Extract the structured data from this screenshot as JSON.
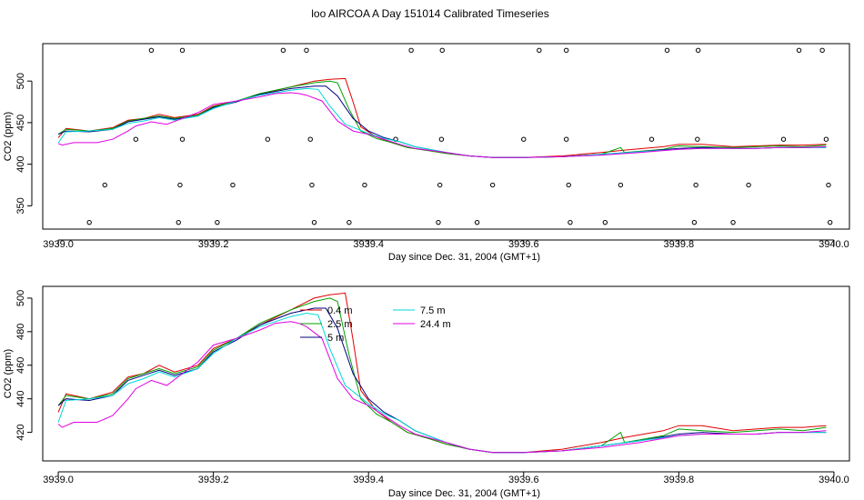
{
  "title": "loo AIRCOA A  Day 151014  Calibrated Timeseries",
  "colors": {
    "0.4 m": "#e00000",
    "2.5 m": "#00a000",
    "5 m": "#000080",
    "7.5 m": "#00d8d8",
    "24.4 m": "#e000e0",
    "axis": "#000000"
  },
  "chart_data": [
    {
      "type": "line",
      "title": "",
      "xlabel": "Day since Dec. 31, 2004 (GMT+1)",
      "ylabel": "CO2 (ppm)",
      "xlim": [
        3938.98,
        3940.02
      ],
      "ylim": [
        322,
        545
      ],
      "xticks": [
        "3939.0",
        "3939.2",
        "3939.4",
        "3939.6",
        "3939.8",
        "3940.0"
      ],
      "xtick_values": [
        3939.0,
        3939.2,
        3939.4,
        3939.6,
        3939.8,
        3940.0
      ],
      "yticks": [
        "350",
        "400",
        "450",
        "500"
      ],
      "ytick_values": [
        350,
        400,
        450,
        500
      ],
      "legend": null,
      "series": [
        {
          "key": "0.4 m",
          "x": [
            3939.0,
            3939.01,
            3939.04,
            3939.07,
            3939.09,
            3939.11,
            3939.13,
            3939.15,
            3939.18,
            3939.2,
            3939.23,
            3939.26,
            3939.3,
            3939.33,
            3939.35,
            3939.37,
            3939.38,
            3939.39,
            3939.41,
            3939.43,
            3939.45,
            3939.48,
            3939.5,
            3939.53,
            3939.56,
            3939.6,
            3939.65,
            3939.7,
            3939.73,
            3939.78,
            3939.8,
            3939.83,
            3939.87,
            3939.9,
            3939.93,
            3939.96,
            3939.99
          ],
          "y": [
            432,
            443,
            440,
            444,
            453,
            455,
            460,
            456,
            460,
            470,
            476,
            484,
            493,
            500,
            502,
            503,
            475,
            445,
            433,
            426,
            420,
            416,
            413,
            410,
            408,
            408,
            410,
            414,
            417,
            421,
            424,
            424,
            421,
            422,
            423,
            423,
            424
          ]
        },
        {
          "key": "2.5 m",
          "x": [
            3939.0,
            3939.01,
            3939.04,
            3939.07,
            3939.09,
            3939.11,
            3939.13,
            3939.15,
            3939.18,
            3939.2,
            3939.23,
            3939.26,
            3939.3,
            3939.33,
            3939.35,
            3939.36,
            3939.375,
            3939.39,
            3939.41,
            3939.43,
            3939.45,
            3939.48,
            3939.5,
            3939.53,
            3939.56,
            3939.6,
            3939.65,
            3939.7,
            3939.725,
            3939.73,
            3939.78,
            3939.8,
            3939.83,
            3939.87,
            3939.9,
            3939.93,
            3939.96,
            3939.99
          ],
          "y": [
            436,
            442,
            440,
            443,
            452,
            455,
            458,
            455,
            459,
            469,
            476,
            485,
            493,
            498,
            500,
            498,
            466,
            440,
            431,
            426,
            420,
            416,
            413,
            410,
            408,
            408,
            409,
            412,
            420,
            414,
            418,
            422,
            421,
            420,
            421,
            422,
            421,
            423
          ]
        },
        {
          "key": "5 m",
          "x": [
            3939.0,
            3939.01,
            3939.04,
            3939.07,
            3939.09,
            3939.11,
            3939.13,
            3939.15,
            3939.18,
            3939.2,
            3939.23,
            3939.26,
            3939.3,
            3939.33,
            3939.345,
            3939.36,
            3939.38,
            3939.4,
            3939.42,
            3939.44,
            3939.46,
            3939.5,
            3939.53,
            3939.56,
            3939.6,
            3939.65,
            3939.7,
            3939.75,
            3939.8,
            3939.83,
            3939.87,
            3939.9,
            3939.93,
            3939.96,
            3939.99
          ],
          "y": [
            436,
            440,
            439,
            442,
            451,
            454,
            457,
            454,
            458,
            468,
            475,
            484,
            491,
            494,
            494,
            482,
            455,
            440,
            432,
            427,
            421,
            414,
            410,
            408,
            408,
            409,
            412,
            415,
            419,
            420,
            419,
            419,
            420,
            420,
            420
          ]
        },
        {
          "key": "7.5 m",
          "x": [
            3939.0,
            3939.01,
            3939.04,
            3939.07,
            3939.09,
            3939.11,
            3939.13,
            3939.15,
            3939.18,
            3939.2,
            3939.23,
            3939.26,
            3939.3,
            3939.32,
            3939.335,
            3939.35,
            3939.37,
            3939.4,
            3939.42,
            3939.44,
            3939.46,
            3939.5,
            3939.53,
            3939.56,
            3939.6,
            3939.65,
            3939.7,
            3939.75,
            3939.8,
            3939.83,
            3939.87,
            3939.9,
            3939.93,
            3939.96,
            3939.99
          ],
          "y": [
            426,
            439,
            440,
            442,
            449,
            452,
            456,
            453,
            458,
            467,
            476,
            483,
            489,
            491,
            490,
            470,
            448,
            437,
            431,
            427,
            421,
            414,
            410,
            408,
            408,
            409,
            412,
            415,
            418,
            419,
            419,
            419,
            420,
            420,
            420
          ]
        },
        {
          "key": "24.4 m",
          "x": [
            3939.0,
            3939.005,
            3939.02,
            3939.05,
            3939.07,
            3939.09,
            3939.1,
            3939.12,
            3939.14,
            3939.16,
            3939.18,
            3939.2,
            3939.23,
            3939.26,
            3939.28,
            3939.3,
            3939.31,
            3939.32,
            3939.34,
            3939.36,
            3939.38,
            3939.4,
            3939.42,
            3939.44,
            3939.46,
            3939.5,
            3939.53,
            3939.56,
            3939.6,
            3939.65,
            3939.7,
            3939.75,
            3939.8,
            3939.83,
            3939.87,
            3939.9,
            3939.93,
            3939.96,
            3939.99
          ],
          "y": [
            425,
            423,
            426,
            426,
            430,
            440,
            446,
            451,
            448,
            455,
            462,
            472,
            476,
            481,
            485,
            486,
            485,
            483,
            476,
            452,
            440,
            436,
            430,
            424,
            419,
            414,
            410,
            408,
            408,
            409,
            411,
            414,
            418,
            419,
            419,
            419,
            420,
            420,
            421
          ]
        }
      ],
      "points": [
        {
          "x": 3939.04,
          "y": 330
        },
        {
          "x": 3939.06,
          "y": 375
        },
        {
          "x": 3939.1,
          "y": 430
        },
        {
          "x": 3939.12,
          "y": 537
        },
        {
          "x": 3939.155,
          "y": 330
        },
        {
          "x": 3939.157,
          "y": 375
        },
        {
          "x": 3939.16,
          "y": 430
        },
        {
          "x": 3939.16,
          "y": 537
        },
        {
          "x": 3939.205,
          "y": 330
        },
        {
          "x": 3939.225,
          "y": 375
        },
        {
          "x": 3939.27,
          "y": 430
        },
        {
          "x": 3939.29,
          "y": 537
        },
        {
          "x": 3939.32,
          "y": 537
        },
        {
          "x": 3939.325,
          "y": 430
        },
        {
          "x": 3939.327,
          "y": 375
        },
        {
          "x": 3939.33,
          "y": 330
        },
        {
          "x": 3939.375,
          "y": 330
        },
        {
          "x": 3939.395,
          "y": 375
        },
        {
          "x": 3939.435,
          "y": 430
        },
        {
          "x": 3939.455,
          "y": 537
        },
        {
          "x": 3939.49,
          "y": 330
        },
        {
          "x": 3939.492,
          "y": 375
        },
        {
          "x": 3939.494,
          "y": 430
        },
        {
          "x": 3939.495,
          "y": 537
        },
        {
          "x": 3939.54,
          "y": 330
        },
        {
          "x": 3939.56,
          "y": 375
        },
        {
          "x": 3939.6,
          "y": 430
        },
        {
          "x": 3939.62,
          "y": 537
        },
        {
          "x": 3939.655,
          "y": 430
        },
        {
          "x": 3939.655,
          "y": 537
        },
        {
          "x": 3939.658,
          "y": 375
        },
        {
          "x": 3939.66,
          "y": 330
        },
        {
          "x": 3939.705,
          "y": 330
        },
        {
          "x": 3939.725,
          "y": 375
        },
        {
          "x": 3939.765,
          "y": 430
        },
        {
          "x": 3939.785,
          "y": 537
        },
        {
          "x": 3939.82,
          "y": 330
        },
        {
          "x": 3939.822,
          "y": 375
        },
        {
          "x": 3939.824,
          "y": 430
        },
        {
          "x": 3939.825,
          "y": 537
        },
        {
          "x": 3939.87,
          "y": 330
        },
        {
          "x": 3939.89,
          "y": 375
        },
        {
          "x": 3939.935,
          "y": 430
        },
        {
          "x": 3939.955,
          "y": 537
        },
        {
          "x": 3939.985,
          "y": 537
        },
        {
          "x": 3939.99,
          "y": 430
        },
        {
          "x": 3939.993,
          "y": 375
        },
        {
          "x": 3939.995,
          "y": 330
        }
      ]
    },
    {
      "type": "line",
      "title": "",
      "xlabel": "Day since Dec. 31, 2004 (GMT+1)",
      "ylabel": "CO2 (ppm)",
      "xlim": [
        3938.98,
        3940.02
      ],
      "ylim": [
        403,
        507
      ],
      "xticks": [
        "3939.0",
        "3939.2",
        "3939.4",
        "3939.6",
        "3939.8",
        "3940.0"
      ],
      "xtick_values": [
        3939.0,
        3939.2,
        3939.4,
        3939.6,
        3939.8,
        3940.0
      ],
      "yticks": [
        "420",
        "440",
        "460",
        "480",
        "500"
      ],
      "ytick_values": [
        420,
        440,
        460,
        480,
        500
      ],
      "legend": "top-center",
      "series": [
        {
          "key": "0.4 m",
          "name": "0.4 m",
          "x": [
            3939.0,
            3939.01,
            3939.04,
            3939.07,
            3939.09,
            3939.11,
            3939.13,
            3939.15,
            3939.18,
            3939.2,
            3939.23,
            3939.26,
            3939.3,
            3939.33,
            3939.35,
            3939.37,
            3939.38,
            3939.39,
            3939.41,
            3939.43,
            3939.45,
            3939.48,
            3939.5,
            3939.53,
            3939.56,
            3939.6,
            3939.65,
            3939.7,
            3939.73,
            3939.78,
            3939.8,
            3939.83,
            3939.87,
            3939.9,
            3939.93,
            3939.96,
            3939.99
          ],
          "y": [
            432,
            443,
            440,
            444,
            453,
            455,
            460,
            456,
            460,
            470,
            476,
            484,
            493,
            500,
            502,
            503,
            475,
            445,
            433,
            426,
            420,
            416,
            413,
            410,
            408,
            408,
            410,
            414,
            417,
            421,
            424,
            424,
            421,
            422,
            423,
            423,
            424
          ]
        },
        {
          "key": "2.5 m",
          "name": "2.5 m",
          "x": [
            3939.0,
            3939.01,
            3939.04,
            3939.07,
            3939.09,
            3939.11,
            3939.13,
            3939.15,
            3939.18,
            3939.2,
            3939.23,
            3939.26,
            3939.3,
            3939.33,
            3939.35,
            3939.36,
            3939.375,
            3939.39,
            3939.41,
            3939.43,
            3939.45,
            3939.48,
            3939.5,
            3939.53,
            3939.56,
            3939.6,
            3939.65,
            3939.7,
            3939.725,
            3939.73,
            3939.78,
            3939.8,
            3939.83,
            3939.87,
            3939.9,
            3939.93,
            3939.96,
            3939.99
          ],
          "y": [
            436,
            442,
            440,
            443,
            452,
            455,
            458,
            455,
            459,
            469,
            476,
            485,
            493,
            498,
            500,
            498,
            466,
            440,
            431,
            426,
            420,
            416,
            413,
            410,
            408,
            408,
            409,
            412,
            420,
            414,
            418,
            422,
            421,
            420,
            421,
            422,
            421,
            423
          ]
        },
        {
          "key": "5 m",
          "name": "5 m",
          "x": [
            3939.0,
            3939.01,
            3939.04,
            3939.07,
            3939.09,
            3939.11,
            3939.13,
            3939.15,
            3939.18,
            3939.2,
            3939.23,
            3939.26,
            3939.3,
            3939.33,
            3939.345,
            3939.36,
            3939.38,
            3939.4,
            3939.42,
            3939.44,
            3939.46,
            3939.5,
            3939.53,
            3939.56,
            3939.6,
            3939.65,
            3939.7,
            3939.75,
            3939.8,
            3939.83,
            3939.87,
            3939.9,
            3939.93,
            3939.96,
            3939.99
          ],
          "y": [
            436,
            440,
            439,
            442,
            451,
            454,
            457,
            454,
            458,
            468,
            475,
            484,
            491,
            494,
            494,
            482,
            455,
            440,
            432,
            427,
            421,
            414,
            410,
            408,
            408,
            409,
            412,
            415,
            419,
            420,
            419,
            419,
            420,
            420,
            420
          ]
        },
        {
          "key": "7.5 m",
          "name": "7.5 m",
          "x": [
            3939.0,
            3939.01,
            3939.04,
            3939.07,
            3939.09,
            3939.11,
            3939.13,
            3939.15,
            3939.18,
            3939.2,
            3939.23,
            3939.26,
            3939.3,
            3939.32,
            3939.335,
            3939.35,
            3939.37,
            3939.4,
            3939.42,
            3939.44,
            3939.46,
            3939.5,
            3939.53,
            3939.56,
            3939.6,
            3939.65,
            3939.7,
            3939.75,
            3939.8,
            3939.83,
            3939.87,
            3939.9,
            3939.93,
            3939.96,
            3939.99
          ],
          "y": [
            426,
            439,
            440,
            442,
            449,
            452,
            456,
            453,
            458,
            467,
            476,
            483,
            489,
            491,
            490,
            470,
            448,
            437,
            431,
            427,
            421,
            414,
            410,
            408,
            408,
            409,
            412,
            415,
            418,
            419,
            419,
            419,
            420,
            420,
            420
          ]
        },
        {
          "key": "24.4 m",
          "name": "24.4 m",
          "x": [
            3939.0,
            3939.005,
            3939.02,
            3939.05,
            3939.07,
            3939.09,
            3939.1,
            3939.12,
            3939.14,
            3939.16,
            3939.18,
            3939.2,
            3939.23,
            3939.26,
            3939.28,
            3939.3,
            3939.31,
            3939.32,
            3939.34,
            3939.36,
            3939.38,
            3939.4,
            3939.42,
            3939.44,
            3939.46,
            3939.5,
            3939.53,
            3939.56,
            3939.6,
            3939.65,
            3939.7,
            3939.75,
            3939.8,
            3939.83,
            3939.87,
            3939.9,
            3939.93,
            3939.96,
            3939.99
          ],
          "y": [
            425,
            423,
            426,
            426,
            430,
            440,
            446,
            451,
            448,
            455,
            462,
            472,
            476,
            481,
            485,
            486,
            485,
            483,
            476,
            452,
            440,
            436,
            430,
            424,
            419,
            414,
            410,
            408,
            408,
            409,
            411,
            414,
            418,
            419,
            419,
            419,
            420,
            420,
            421
          ]
        }
      ]
    }
  ]
}
